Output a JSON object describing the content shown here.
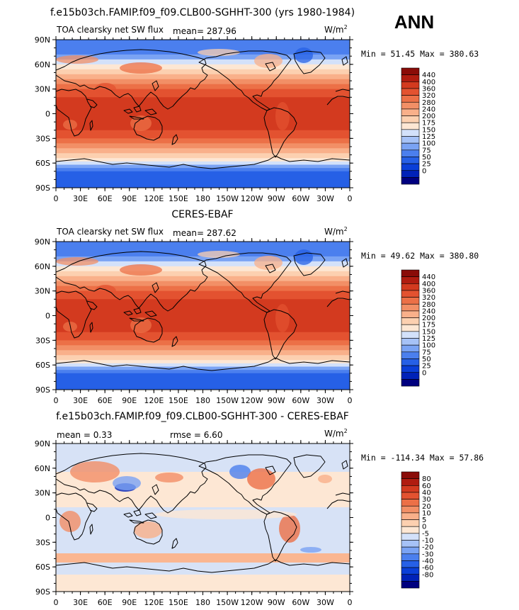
{
  "season": "ANN",
  "panels": [
    {
      "title": "f.e15b03ch.FAMIP.f09_f09.CLB00-SGHHT-300 (yrs 1980-1984)",
      "field_label": "TOA clearsky net SW flux",
      "mean_label": "mean= 287.96",
      "rmse_label": "",
      "units_base": "W/m",
      "units_exp": "2",
      "minmax_label": "Min =  51.45 Max = 380.63",
      "colorbar": {
        "colors": [
          "#00007f",
          "#0022b8",
          "#0a3fd8",
          "#2660e6",
          "#4b7fee",
          "#7aa3f4",
          "#a6c2f7",
          "#d3e1fa",
          "#fde7d4",
          "#fcd0b0",
          "#f9b08a",
          "#f28f66",
          "#ec7047",
          "#e35230",
          "#d33a1f",
          "#b01c10",
          "#8a0c08"
        ],
        "labels": [
          "440",
          "400",
          "360",
          "320",
          "280",
          "240",
          "200",
          "175",
          "150",
          "125",
          "100",
          "75",
          "50",
          "25",
          "0"
        ]
      },
      "style": "abs"
    },
    {
      "title": "CERES-EBAF",
      "field_label": "TOA clearsky net SW flux",
      "mean_label": "mean= 287.62",
      "rmse_label": "",
      "units_base": "W/m",
      "units_exp": "2",
      "minmax_label": "Min =  49.62 Max = 380.80",
      "colorbar": {
        "colors": [
          "#00007f",
          "#0022b8",
          "#0a3fd8",
          "#2660e6",
          "#4b7fee",
          "#7aa3f4",
          "#a6c2f7",
          "#d3e1fa",
          "#fde7d4",
          "#fcd0b0",
          "#f9b08a",
          "#f28f66",
          "#ec7047",
          "#e35230",
          "#d33a1f",
          "#b01c10",
          "#8a0c08"
        ],
        "labels": [
          "440",
          "400",
          "360",
          "320",
          "280",
          "240",
          "200",
          "175",
          "150",
          "125",
          "100",
          "75",
          "50",
          "25",
          "0"
        ]
      },
      "style": "abs"
    },
    {
      "title": "f.e15b03ch.FAMIP.f09_f09.CLB00-SGHHT-300 - CERES-EBAF",
      "field_label": "",
      "mean_label": "mean =    0.33",
      "rmse_label": "rmse =    6.60",
      "units_base": "W/m",
      "units_exp": "2",
      "minmax_label": "Min = -114.34 Max =  57.86",
      "colorbar": {
        "colors": [
          "#00007f",
          "#0022b8",
          "#0a3fd8",
          "#2660e6",
          "#4b7fee",
          "#7aa3f4",
          "#a6c2f7",
          "#d3e1fa",
          "#fde7d4",
          "#fcd0b0",
          "#f9b08a",
          "#f28f66",
          "#ec7047",
          "#e35230",
          "#d33a1f",
          "#b01c10",
          "#8a0c08"
        ],
        "labels": [
          "80",
          "60",
          "40",
          "30",
          "20",
          "10",
          "5",
          "0",
          "-5",
          "-10",
          "-20",
          "-30",
          "-40",
          "-60",
          "-80"
        ]
      },
      "style": "diff"
    }
  ],
  "lat_ticks": [
    "90N",
    "60N",
    "30N",
    "0",
    "30S",
    "60S",
    "90S"
  ],
  "lon_ticks": [
    "0",
    "30E",
    "60E",
    "90E",
    "120E",
    "150E",
    "180",
    "150W",
    "120W",
    "90W",
    "60W",
    "30W",
    "0"
  ]
}
